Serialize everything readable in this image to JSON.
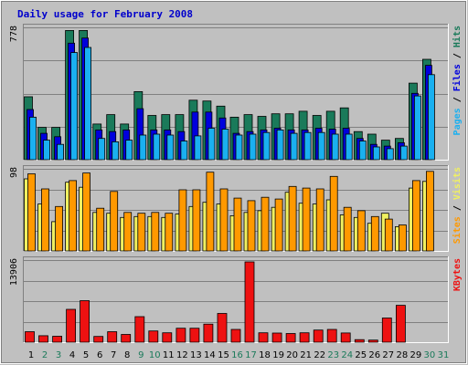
{
  "chart_data": {
    "type": "bar",
    "title": "Daily usage for February 2008",
    "days": [
      "1",
      "2",
      "3",
      "4",
      "5",
      "6",
      "7",
      "8",
      "9",
      "10",
      "11",
      "12",
      "13",
      "14",
      "15",
      "16",
      "17",
      "18",
      "19",
      "20",
      "21",
      "22",
      "23",
      "24",
      "25",
      "26",
      "27",
      "28",
      "29",
      "30",
      "31"
    ],
    "weekend_days": [
      "2",
      "3",
      "9",
      "10",
      "16",
      "17",
      "23",
      "24",
      "30",
      "31"
    ],
    "colors": {
      "hits": "#1a7a5a",
      "files": "#0000dd",
      "pages": "#1ab0f0",
      "visits": "#f0f060",
      "sites": "#ff9900",
      "kbytes": "#ee1111",
      "weekday_label": "#000000",
      "weekend_label": "#1a7a5a"
    },
    "panels": [
      {
        "id": "usage",
        "ymax": 778,
        "ymax_label": "778",
        "legend": [
          {
            "text": "Pages",
            "color": "#1ab0f0"
          },
          {
            "text": " / ",
            "color": "#000000"
          },
          {
            "text": "Files",
            "color": "#0000dd"
          },
          {
            "text": " / ",
            "color": "#000000"
          },
          {
            "text": "Hits",
            "color": "#1a7a5a"
          }
        ],
        "series": [
          {
            "name": "Hits",
            "color": "#1a7a5a",
            "values": [
              370,
              190,
              190,
              760,
              760,
              210,
              265,
              210,
              400,
              260,
              265,
              265,
              350,
              345,
              315,
              250,
              265,
              255,
              270,
              270,
              285,
              260,
              285,
              305,
              165,
              150,
              115,
              125,
              450,
              590,
              0
            ]
          },
          {
            "name": "Files",
            "color": "#0000dd",
            "values": [
              295,
              155,
              135,
              685,
              715,
              175,
              165,
              175,
              300,
              175,
              175,
              165,
              280,
              280,
              245,
              155,
              165,
              175,
              185,
              175,
              175,
              185,
              180,
              185,
              125,
              90,
              80,
              100,
              390,
              555,
              0
            ]
          },
          {
            "name": "Pages",
            "color": "#1ab0f0",
            "values": [
              250,
              115,
              90,
              630,
              660,
              125,
              105,
              115,
              145,
              150,
              145,
              110,
              140,
              185,
              180,
              145,
              150,
              160,
              175,
              155,
              160,
              160,
              150,
              150,
              110,
              75,
              65,
              80,
              375,
              500,
              0
            ]
          }
        ]
      },
      {
        "id": "visits",
        "ymax": 98,
        "ymax_label": "98",
        "legend": [
          {
            "text": "Sites",
            "color": "#ff9900"
          },
          {
            "text": " / ",
            "color": "#000000"
          },
          {
            "text": "Visits",
            "color": "#f0f060"
          }
        ],
        "series": [
          {
            "name": "Visits",
            "color": "#f0f060",
            "values": [
              86,
              56,
              35,
              82,
              76,
              46,
              45,
              40,
              41,
              41,
              40,
              44,
              53,
              58,
              56,
              42,
              46,
              48,
              52,
              70,
              57,
              56,
              61,
              43,
              40,
              33,
              45,
              29,
              75,
              83,
              0
            ]
          },
          {
            "name": "Sites",
            "color": "#ff9900",
            "values": [
              92,
              74,
              53,
              84,
              93,
              51,
              71,
              46,
              45,
              46,
              45,
              73,
              73,
              94,
              74,
              63,
              60,
              64,
              62,
              77,
              75,
              74,
              89,
              52,
              48,
              41,
              38,
              31,
              84,
              95,
              0
            ]
          }
        ]
      },
      {
        "id": "kbytes",
        "ymax": 13906,
        "ymax_label": "13906",
        "legend": [
          {
            "text": "KBytes",
            "color": "#ee1111"
          }
        ],
        "series": [
          {
            "name": "KBytes",
            "color": "#ee1111",
            "values": [
              1780,
              1090,
              1000,
              5560,
              7030,
              980,
              1780,
              1320,
              4320,
              1900,
              1590,
              2360,
              2360,
              3060,
              4860,
              2160,
              13600,
              1590,
              1540,
              1470,
              1590,
              2060,
              2170,
              1560,
              430,
              350,
              4090,
              6240,
              0,
              0,
              0
            ]
          }
        ]
      }
    ]
  }
}
